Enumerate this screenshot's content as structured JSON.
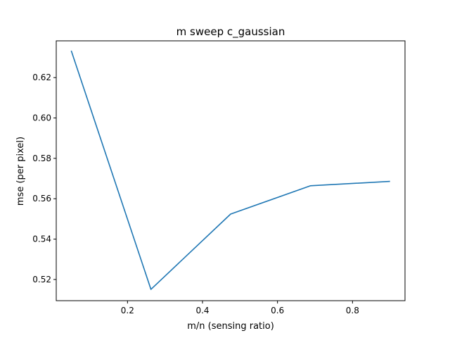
{
  "chart_data": {
    "type": "line",
    "title": "m sweep c_gaussian",
    "xlabel": "m/n (sensing ratio)",
    "ylabel": "mse (per pixel)",
    "xlim": [
      0.01,
      0.94
    ],
    "ylim": [
      0.5095,
      0.6382
    ],
    "xticks": [
      0.2,
      0.4,
      0.6,
      0.8
    ],
    "xtick_labels": [
      "0.2",
      "0.4",
      "0.6",
      "0.8"
    ],
    "yticks": [
      0.52,
      0.54,
      0.56,
      0.58,
      0.6,
      0.62
    ],
    "ytick_labels": [
      "0.52",
      "0.54",
      "0.56",
      "0.58",
      "0.60",
      "0.62"
    ],
    "grid": false,
    "series": [
      {
        "color": "#1f77b4",
        "x": [
          0.05,
          0.2625,
          0.475,
          0.6875,
          0.9
        ],
        "y": [
          0.6333,
          0.5151,
          0.5524,
          0.5664,
          0.5686
        ]
      }
    ]
  }
}
